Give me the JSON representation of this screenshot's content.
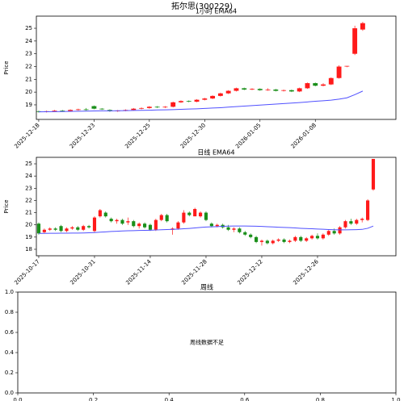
{
  "title": "拓尔思(300229)",
  "chart_data": [
    {
      "type": "candlestick",
      "title": "1小时 EMA64",
      "ylabel": "Price",
      "up_color": "#ff1a1a",
      "down_color": "#1a8f1a",
      "open": [
        18.5,
        18.45,
        18.5,
        18.55,
        18.5,
        18.6,
        18.65,
        18.9,
        18.7,
        18.6,
        18.5,
        18.55,
        18.6,
        18.7,
        18.75,
        18.85,
        18.8,
        18.85,
        19.2,
        19.3,
        19.25,
        19.4,
        19.5,
        19.7,
        19.9,
        20.1,
        20.3,
        20.2,
        20.25,
        20.15,
        20.2,
        20.1,
        20.15,
        20.05,
        20.3,
        20.7,
        20.5,
        20.6,
        21.1,
        22.0,
        23.0,
        24.9
      ],
      "high": [
        18.55,
        18.55,
        18.6,
        18.6,
        18.65,
        18.7,
        18.75,
        18.95,
        18.75,
        18.65,
        18.6,
        18.65,
        18.75,
        18.8,
        18.9,
        18.9,
        18.9,
        19.25,
        19.35,
        19.35,
        19.45,
        19.55,
        19.75,
        19.95,
        20.15,
        20.35,
        20.35,
        20.3,
        20.3,
        20.3,
        20.25,
        20.2,
        20.2,
        20.35,
        20.75,
        20.75,
        20.7,
        21.15,
        22.1,
        22.05,
        25.2,
        25.5
      ],
      "low": [
        18.4,
        18.4,
        18.45,
        18.45,
        18.45,
        18.55,
        18.55,
        18.65,
        18.6,
        18.45,
        18.45,
        18.5,
        18.55,
        18.65,
        18.7,
        18.75,
        18.75,
        18.8,
        19.15,
        19.2,
        19.2,
        19.35,
        19.45,
        19.65,
        19.85,
        20.05,
        20.15,
        20.15,
        20.1,
        20.1,
        20.05,
        20.05,
        20.0,
        20.0,
        20.25,
        20.45,
        20.45,
        20.55,
        21.05,
        21.95,
        22.9,
        24.8
      ],
      "close": [
        18.45,
        18.5,
        18.55,
        18.5,
        18.6,
        18.65,
        18.6,
        18.7,
        18.65,
        18.5,
        18.55,
        18.6,
        18.7,
        18.75,
        18.85,
        18.8,
        18.85,
        19.2,
        19.3,
        19.25,
        19.4,
        19.5,
        19.7,
        19.9,
        20.1,
        20.3,
        20.2,
        20.25,
        20.15,
        20.2,
        20.1,
        20.15,
        20.05,
        20.3,
        20.7,
        20.5,
        20.6,
        21.1,
        22.0,
        22.05,
        25.0,
        25.4
      ],
      "ema": {
        "color": "#5050ff",
        "values": [
          18.45,
          18.46,
          18.47,
          18.48,
          18.49,
          18.5,
          18.51,
          18.52,
          18.53,
          18.53,
          18.54,
          18.55,
          18.56,
          18.57,
          18.58,
          18.6,
          18.61,
          18.63,
          18.65,
          18.67,
          18.69,
          18.72,
          18.75,
          18.78,
          18.82,
          18.86,
          18.9,
          18.94,
          18.98,
          19.02,
          19.06,
          19.1,
          19.14,
          19.18,
          19.23,
          19.28,
          19.32,
          19.37,
          19.45,
          19.55,
          19.8,
          20.08
        ]
      },
      "xlim": [
        -0.3,
        45.2
      ],
      "ylim": [
        17.86,
        25.95
      ],
      "yticks": [
        19,
        20,
        21,
        22,
        23,
        24,
        25
      ],
      "xticks": [
        {
          "value": 0,
          "label": "2025-12-18"
        },
        {
          "value": 7,
          "label": "2025-12-23"
        },
        {
          "value": 14,
          "label": "2025-12-25"
        },
        {
          "value": 21,
          "label": "2025-12-30"
        },
        {
          "value": 28,
          "label": "2026-01-05"
        },
        {
          "value": 35,
          "label": "2026-01-08"
        }
      ]
    },
    {
      "type": "candlestick",
      "title": "日线 EMA64",
      "ylabel": "Price",
      "up_color": "#ff1a1a",
      "down_color": "#1a8f1a",
      "open": [
        20.1,
        19.4,
        19.6,
        19.7,
        19.9,
        19.5,
        19.7,
        19.8,
        19.6,
        19.9,
        19.5,
        20.7,
        21.0,
        20.5,
        20.3,
        20.4,
        20.2,
        20.3,
        19.9,
        20.1,
        20.0,
        19.6,
        20.4,
        20.8,
        19.6,
        19.7,
        20.2,
        21.0,
        20.7,
        20.7,
        21.0,
        20.1,
        19.9,
        20.0,
        19.8,
        19.6,
        19.7,
        19.4,
        19.2,
        19.0,
        18.6,
        18.7,
        18.5,
        18.7,
        18.8,
        18.6,
        18.7,
        19.0,
        18.7,
        18.9,
        19.1,
        18.9,
        19.2,
        19.5,
        19.3,
        19.8,
        20.3,
        20.1,
        20.4,
        20.4,
        22.9
      ],
      "high": [
        20.2,
        19.7,
        19.8,
        19.8,
        20.0,
        19.8,
        19.9,
        19.9,
        20.0,
        20.0,
        20.7,
        21.3,
        21.1,
        20.6,
        20.5,
        20.5,
        20.6,
        20.4,
        20.2,
        20.2,
        20.1,
        20.5,
        20.9,
        20.9,
        19.8,
        20.3,
        21.2,
        21.1,
        21.4,
        21.1,
        21.1,
        20.2,
        20.1,
        20.1,
        20.0,
        19.8,
        19.8,
        19.5,
        19.3,
        19.1,
        18.8,
        18.8,
        18.8,
        18.9,
        18.9,
        18.8,
        19.1,
        19.1,
        19.0,
        19.2,
        19.3,
        19.3,
        19.6,
        19.7,
        19.9,
        20.4,
        20.5,
        20.5,
        20.6,
        22.1,
        25.4
      ],
      "low": [
        19.2,
        19.3,
        19.5,
        19.5,
        19.4,
        19.4,
        19.6,
        19.5,
        19.5,
        19.7,
        19.4,
        20.6,
        20.6,
        20.2,
        20.1,
        20.0,
        20.0,
        19.8,
        19.7,
        19.7,
        19.5,
        19.5,
        20.3,
        20.2,
        19.2,
        19.6,
        20.1,
        20.7,
        20.7,
        20.6,
        20.3,
        19.8,
        19.8,
        19.7,
        19.5,
        19.4,
        19.3,
        19.1,
        18.9,
        18.5,
        18.3,
        18.4,
        18.4,
        18.6,
        18.5,
        18.5,
        18.6,
        18.6,
        18.6,
        18.8,
        18.8,
        18.8,
        19.1,
        19.2,
        19.2,
        19.7,
        20.0,
        20.0,
        20.2,
        20.3,
        22.8
      ],
      "close": [
        19.3,
        19.6,
        19.7,
        19.6,
        19.5,
        19.7,
        19.8,
        19.6,
        19.9,
        19.8,
        20.6,
        21.2,
        20.7,
        20.3,
        20.4,
        20.1,
        20.3,
        19.9,
        20.1,
        19.8,
        19.6,
        20.4,
        20.8,
        20.3,
        19.7,
        20.2,
        21.0,
        20.8,
        21.3,
        21.0,
        20.4,
        19.9,
        20.0,
        19.8,
        19.6,
        19.7,
        19.4,
        19.2,
        19.0,
        18.6,
        18.7,
        18.5,
        18.7,
        18.8,
        18.6,
        18.7,
        19.0,
        18.7,
        18.9,
        19.1,
        18.9,
        19.2,
        19.5,
        19.3,
        19.8,
        20.3,
        20.1,
        20.4,
        20.5,
        22.0,
        25.4
      ],
      "ema": {
        "color": "#5050ff",
        "values": [
          19.3,
          19.3,
          19.31,
          19.31,
          19.32,
          19.32,
          19.33,
          19.33,
          19.34,
          19.35,
          19.37,
          19.4,
          19.43,
          19.46,
          19.48,
          19.5,
          19.52,
          19.53,
          19.54,
          19.55,
          19.56,
          19.58,
          19.6,
          19.62,
          19.63,
          19.65,
          19.68,
          19.71,
          19.75,
          19.79,
          19.82,
          19.84,
          19.86,
          19.88,
          19.9,
          19.91,
          19.91,
          19.91,
          19.9,
          19.89,
          19.87,
          19.85,
          19.83,
          19.81,
          19.79,
          19.77,
          19.75,
          19.72,
          19.7,
          19.68,
          19.66,
          19.64,
          19.62,
          19.6,
          19.59,
          19.59,
          19.6,
          19.61,
          19.63,
          19.72,
          19.9
        ]
      },
      "xlim": [
        -0.43,
        64.06
      ],
      "ylim": [
        17.47,
        25.53
      ],
      "yticks": [
        18,
        19,
        20,
        21,
        22,
        23,
        24,
        25
      ],
      "xticks": [
        {
          "value": 0,
          "label": "2025-10-17"
        },
        {
          "value": 10,
          "label": "2025-10-31"
        },
        {
          "value": 20,
          "label": "2025-11-14"
        },
        {
          "value": 30,
          "label": "2025-11-28"
        },
        {
          "value": 40,
          "label": "2025-12-12"
        },
        {
          "value": 50,
          "label": "2025-12-26"
        }
      ]
    },
    {
      "type": "blank",
      "title": "周线",
      "annotation": "周线数据不足",
      "xlim": [
        0,
        1
      ],
      "ylim": [
        0,
        1
      ],
      "xticks": [
        {
          "value": 0,
          "label": "0.0"
        },
        {
          "value": 0.2,
          "label": "0.2"
        },
        {
          "value": 0.4,
          "label": "0.4"
        },
        {
          "value": 0.6,
          "label": "0.6"
        },
        {
          "value": 0.8,
          "label": "0.8"
        },
        {
          "value": 1,
          "label": "1.0"
        }
      ],
      "yticks": [
        {
          "value": 0,
          "label": "0.0"
        },
        {
          "value": 0.2,
          "label": "0.2"
        },
        {
          "value": 0.4,
          "label": "0.4"
        },
        {
          "value": 0.6,
          "label": "0.6"
        },
        {
          "value": 0.8,
          "label": "0.8"
        },
        {
          "value": 1,
          "label": "1.0"
        }
      ]
    }
  ]
}
